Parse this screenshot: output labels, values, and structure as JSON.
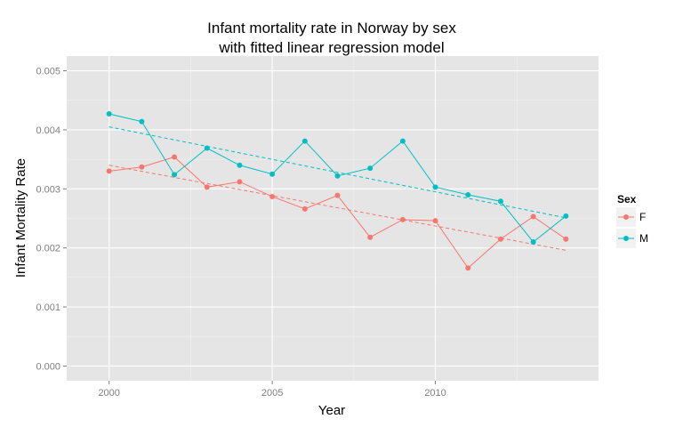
{
  "chart_data": {
    "type": "line",
    "title_line1": "Infant mortality rate in Norway by sex",
    "title_line2": "with fitted linear regression model",
    "xlabel": "Year",
    "ylabel": "Infant Mortality Rate",
    "xlim": [
      1998.7,
      2015.0
    ],
    "ylim": [
      -0.00025,
      0.00525
    ],
    "x_ticks": [
      2000,
      2005,
      2010
    ],
    "x_tick_labels": [
      "2000",
      "2005",
      "2010"
    ],
    "y_ticks": [
      0,
      0.001,
      0.002,
      0.003,
      0.004,
      0.005
    ],
    "y_tick_labels": [
      "0.000",
      "0.001",
      "0.002",
      "0.003",
      "0.004",
      "0.005"
    ],
    "grid": true,
    "legend_title": "Sex",
    "legend_position": "right",
    "x": [
      2000,
      2001,
      2002,
      2003,
      2004,
      2005,
      2006,
      2007,
      2008,
      2009,
      2010,
      2011,
      2012,
      2013,
      2014
    ],
    "series": [
      {
        "name": "F",
        "color": "#F8766D",
        "values": [
          0.0033,
          0.00337,
          0.00354,
          0.00303,
          0.00312,
          0.00287,
          0.00266,
          0.00289,
          0.00218,
          0.00248,
          0.00246,
          0.00166,
          0.00215,
          0.00253,
          0.00215
        ],
        "fit": [
          0.0034,
          0.00196
        ]
      },
      {
        "name": "M",
        "color": "#00BFC4",
        "values": [
          0.00427,
          0.00414,
          0.00324,
          0.00369,
          0.0034,
          0.00325,
          0.00381,
          0.00322,
          0.00335,
          0.00381,
          0.00303,
          0.0029,
          0.00279,
          0.0021,
          0.00254
        ],
        "fit": [
          0.00405,
          0.00251
        ]
      }
    ]
  }
}
